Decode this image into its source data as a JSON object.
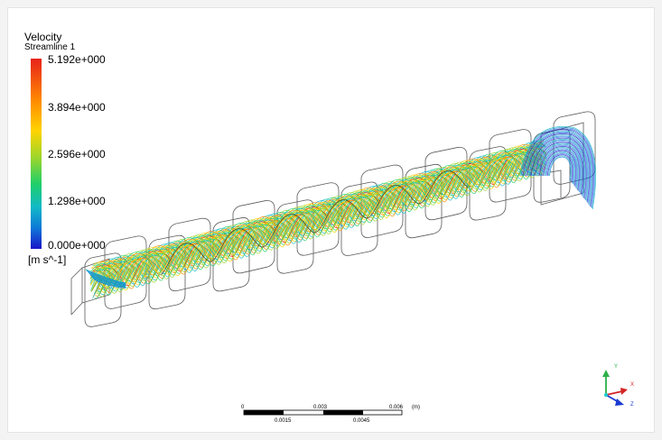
{
  "legend": {
    "title": "Velocity",
    "subtitle": "Streamline 1",
    "ticks": [
      "5.192e+000",
      "3.894e+000",
      "2.596e+000",
      "1.298e+000",
      "0.000e+000"
    ],
    "units": "[m s^-1]",
    "colors": [
      "#e8221b",
      "#ff8a00",
      "#ffd400",
      "#9cd62a",
      "#1ecf6a",
      "#12b9c7",
      "#0d79d8",
      "#1a14c9"
    ]
  },
  "scale_bar": {
    "top_labels": [
      "0",
      "0.003",
      "0.006"
    ],
    "unit": "(m)",
    "bottom_labels": [
      "0.0015",
      "0.0045"
    ]
  },
  "triad": {
    "x": "X",
    "y": "Y",
    "z": "Z"
  }
}
